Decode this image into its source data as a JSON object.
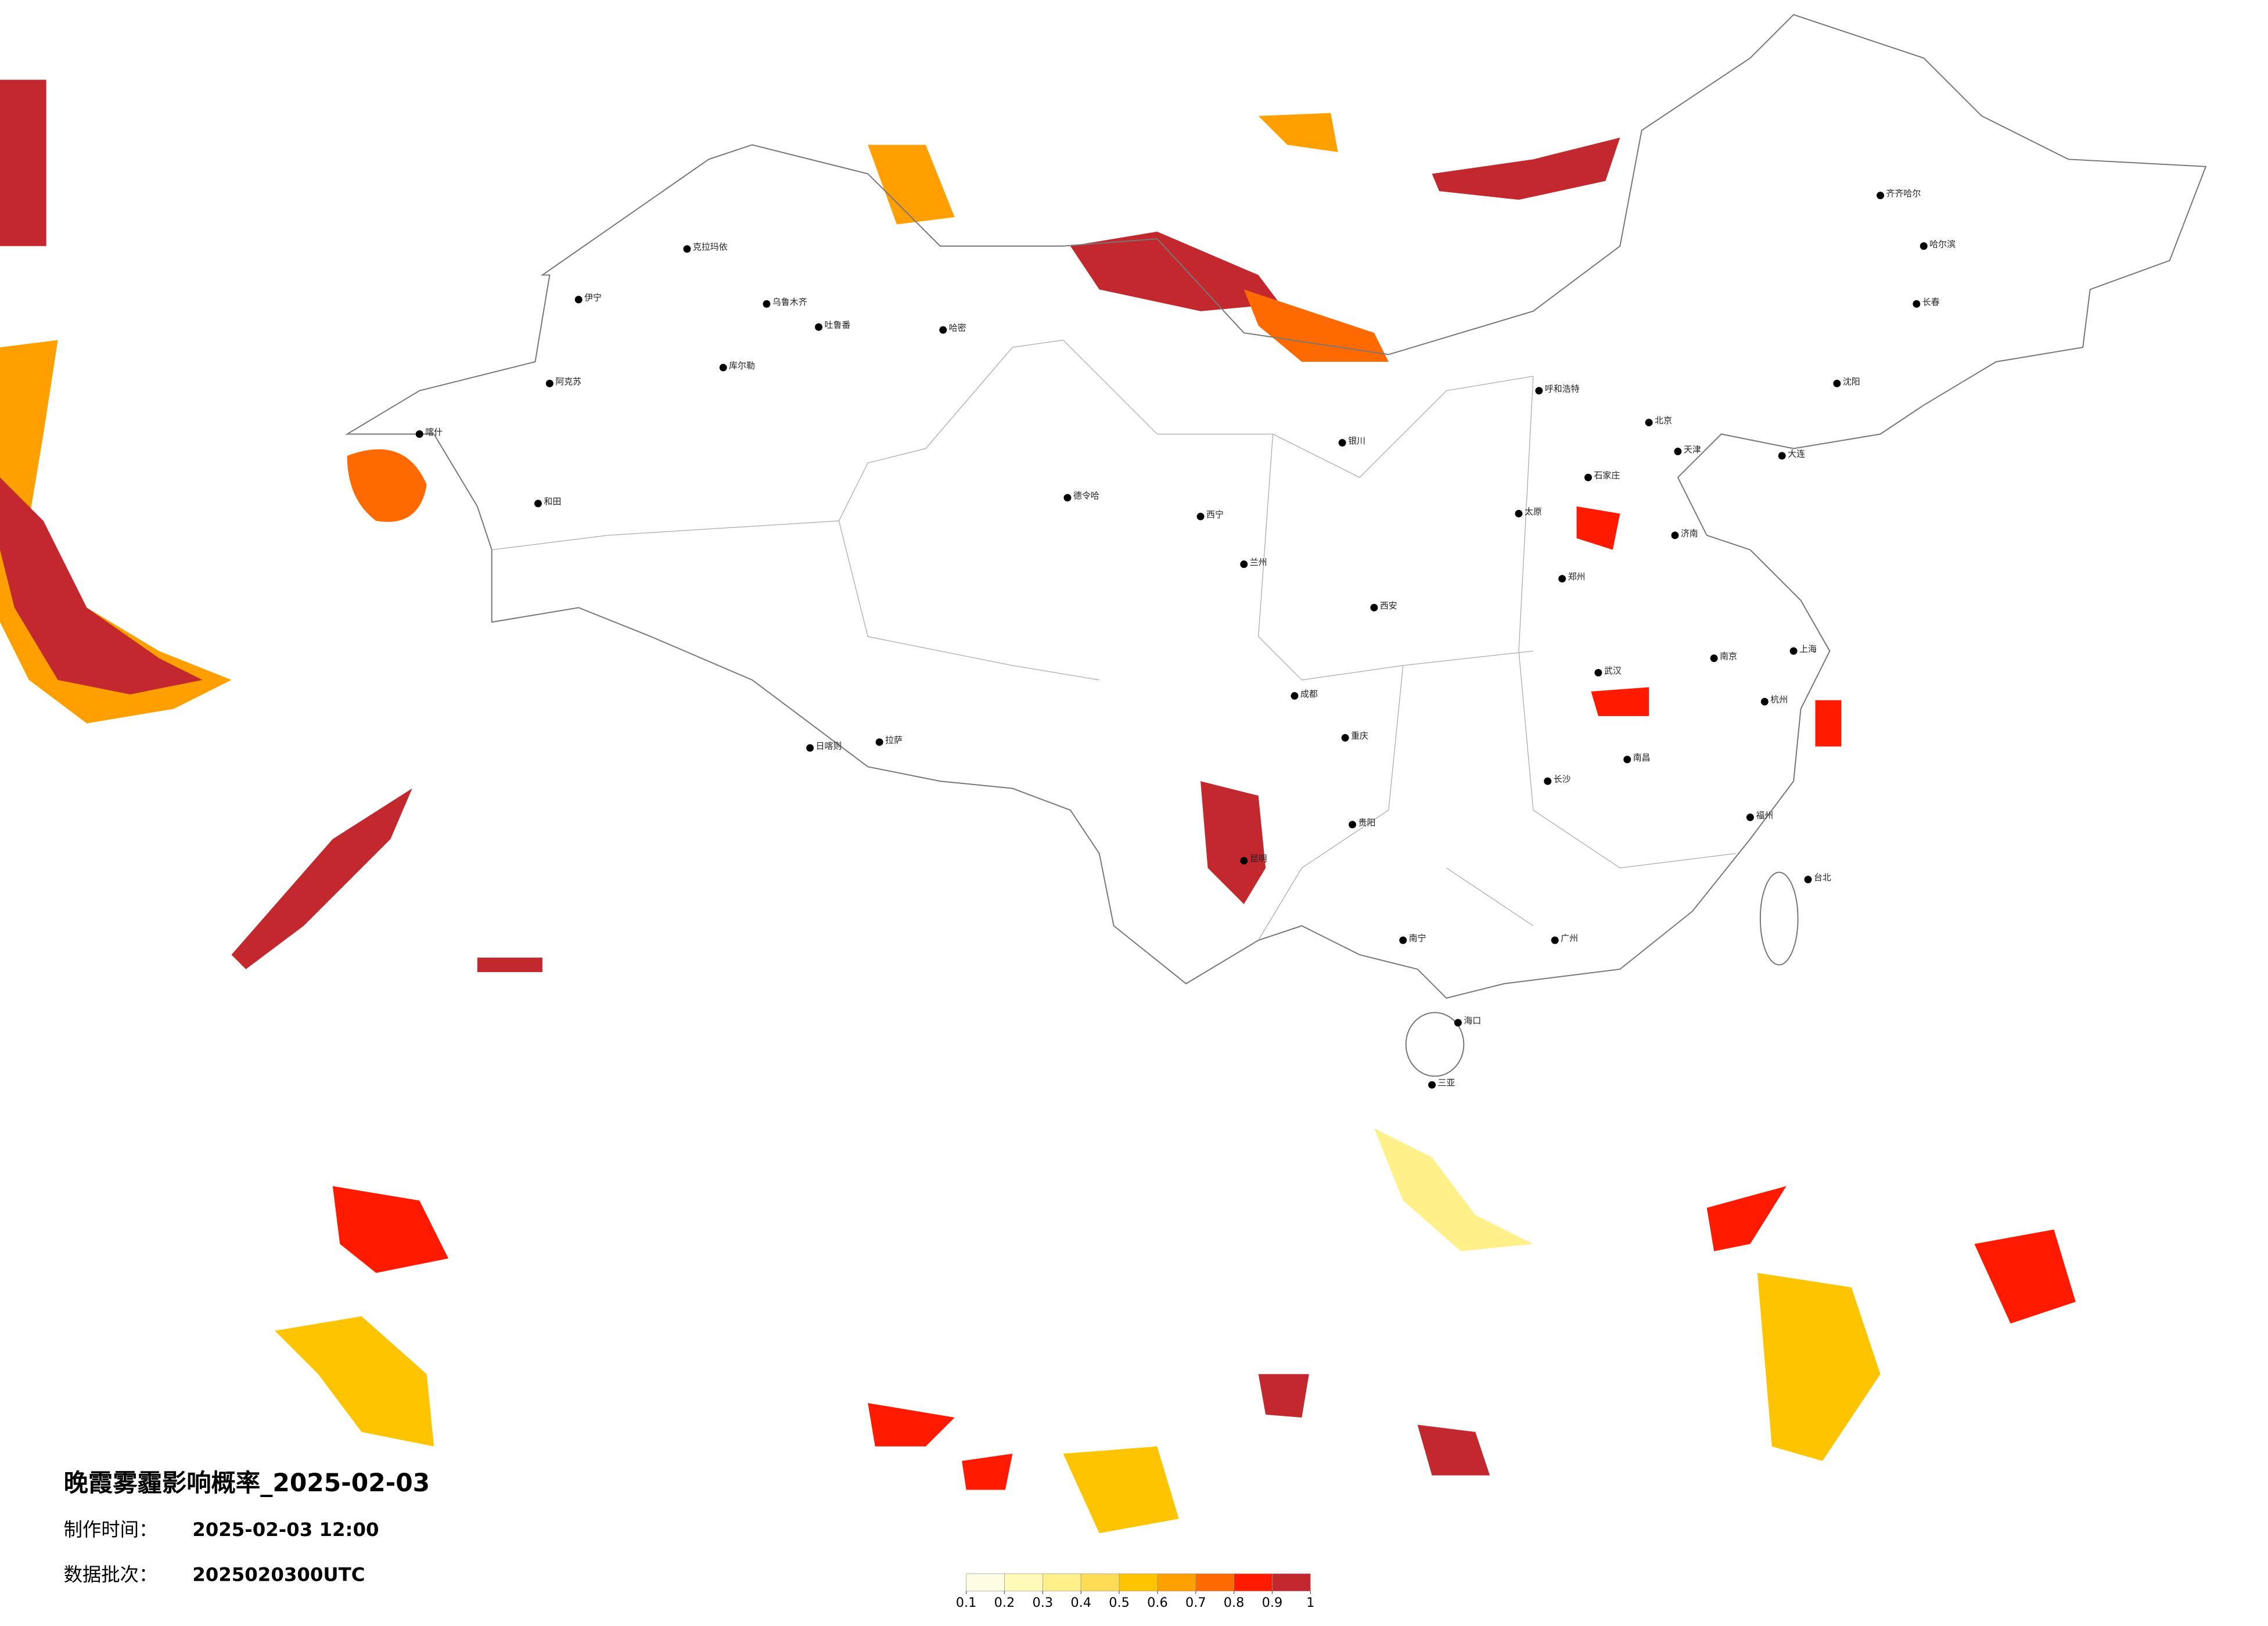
{
  "title": "晚霞雾霾影响概率_2025-02-03",
  "made_time": {
    "label": "制作时间：",
    "value": "2025-02-03 12:00"
  },
  "batch": {
    "label": "数据批次：",
    "value": "2025020300UTC"
  },
  "colorbar": {
    "ticks": [
      0.1,
      0.2,
      0.3,
      0.4,
      0.5,
      0.6,
      0.7,
      0.8,
      0.9,
      1
    ],
    "colors": [
      "#fffde3",
      "#fffab8",
      "#fff08a",
      "#ffdc55",
      "#ffc400",
      "#ff9f00",
      "#ff6a00",
      "#ff1a00",
      "#c2282e"
    ]
  },
  "cities": [
    "乌鲁木齐",
    "克拉玛依",
    "伊宁",
    "阿克苏",
    "喀什",
    "和田",
    "哈密",
    "吐鲁番",
    "库尔勒",
    "德令哈",
    "拉萨",
    "日喀则",
    "西宁",
    "兰州",
    "银川",
    "呼和浩特",
    "北京",
    "天津",
    "石家庄",
    "太原",
    "济南",
    "郑州",
    "西安",
    "成都",
    "重庆",
    "武汉",
    "长沙",
    "南京",
    "上海",
    "杭州",
    "福州",
    "南昌",
    "广州",
    "南宁",
    "昆明",
    "贵阳",
    "海口",
    "哈尔滨",
    "长春",
    "沈阳",
    "大连",
    "台北",
    "齐齐哈尔",
    "三亚"
  ]
}
